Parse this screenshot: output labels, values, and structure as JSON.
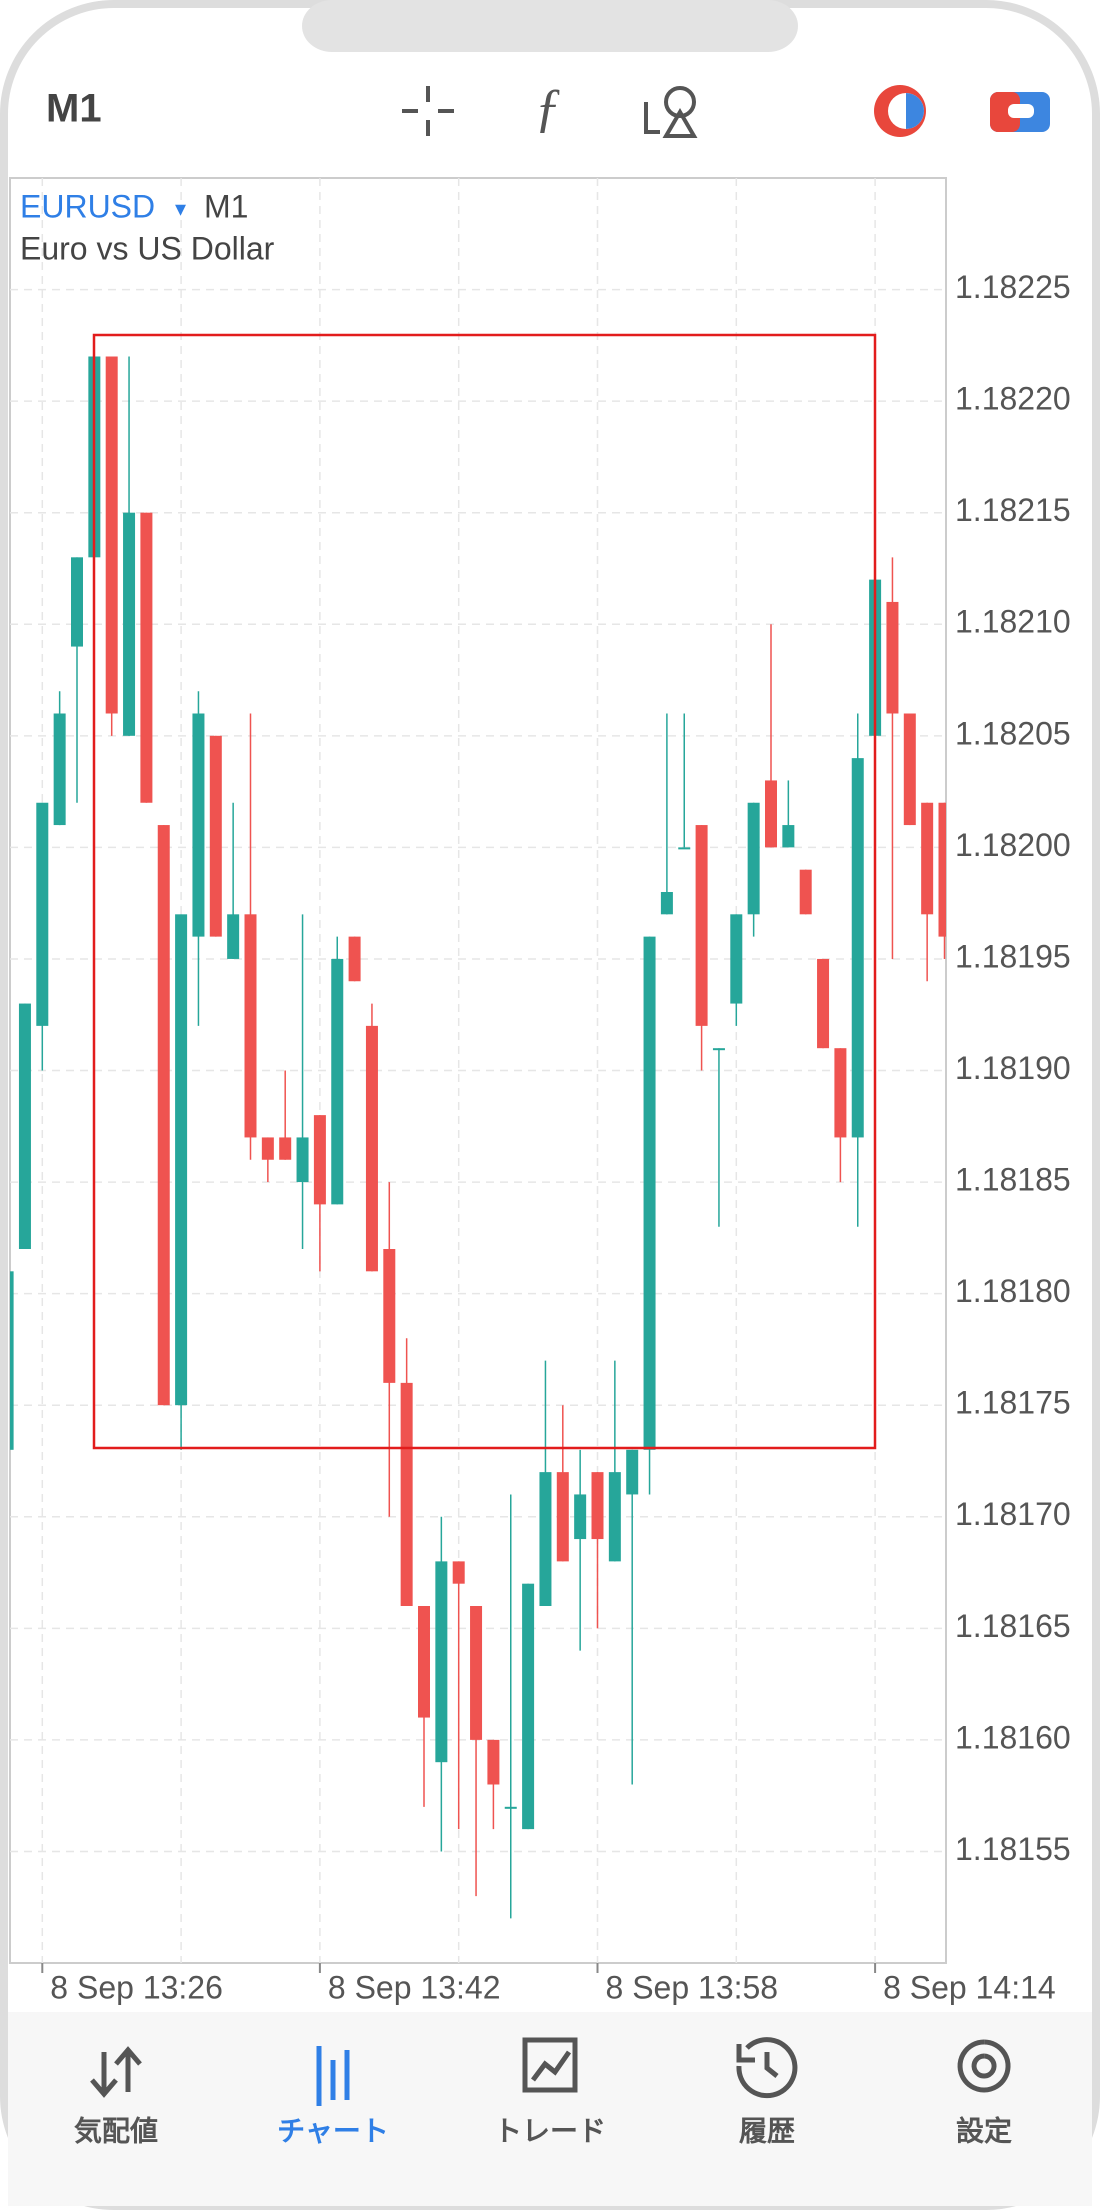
{
  "ui": {
    "timeframe": "M1",
    "tabs": [
      "気配値",
      "チャート",
      "トレード",
      "履歴",
      "設定"
    ]
  },
  "chart_data": {
    "type": "candlestick",
    "symbol": "EURUSD",
    "timeframe": "M1",
    "subtitle": "Euro vs US Dollar",
    "categories": [
      null,
      null,
      "8 Sep 13:26",
      null,
      null,
      null,
      null,
      null,
      null,
      null,
      null,
      null,
      null,
      null,
      null,
      null,
      null,
      null,
      "8 Sep 13:42",
      null,
      null,
      null,
      null,
      null,
      null,
      null,
      null,
      null,
      null,
      null,
      null,
      null,
      null,
      null,
      "8 Sep 13:58",
      null,
      null,
      null,
      null,
      null,
      null,
      null,
      null,
      null,
      null,
      null,
      null,
      null,
      null,
      null,
      "8 Sep 14:14",
      null,
      null,
      null,
      null
    ],
    "open": [
      1.18173,
      1.18182,
      1.18192,
      1.18201,
      1.18209,
      1.18213,
      1.18222,
      1.18205,
      1.18215,
      1.18201,
      1.18175,
      1.18196,
      1.18205,
      1.18195,
      1.18197,
      1.18187,
      1.18187,
      1.18185,
      1.18188,
      1.18184,
      1.18196,
      1.18192,
      1.18182,
      1.18176,
      1.18166,
      1.18159,
      1.18168,
      1.18166,
      1.1816,
      1.18157,
      1.18156,
      1.18166,
      1.18172,
      1.18169,
      1.18172,
      1.18168,
      1.18171,
      1.18173,
      1.18197,
      1.182,
      1.18201,
      1.18191,
      1.18193,
      1.18197,
      1.18203,
      1.182,
      1.18199,
      1.18195,
      1.18191,
      1.18187,
      1.18205,
      1.18211,
      1.18206,
      1.18202,
      1.18202
    ],
    "high": [
      1.18181,
      1.18193,
      1.18202,
      1.18207,
      1.18213,
      1.18222,
      1.18222,
      1.18222,
      1.18215,
      1.18201,
      1.18197,
      1.18207,
      1.18205,
      1.18202,
      1.18206,
      1.18187,
      1.1819,
      1.18197,
      1.18188,
      1.18196,
      1.18196,
      1.18193,
      1.18185,
      1.18178,
      1.18166,
      1.1817,
      1.18168,
      1.18166,
      1.1816,
      1.18171,
      1.18167,
      1.18177,
      1.18175,
      1.18173,
      1.18172,
      1.18177,
      1.18173,
      1.18196,
      1.18206,
      1.18206,
      1.18201,
      1.18191,
      1.18197,
      1.18202,
      1.1821,
      1.18203,
      1.18199,
      1.18195,
      1.18191,
      1.18206,
      1.18212,
      1.18213,
      1.18206,
      1.18202,
      1.18202
    ],
    "low": [
      1.18173,
      1.18182,
      1.1819,
      1.18201,
      1.18202,
      1.18213,
      1.18205,
      1.18205,
      1.18202,
      1.18175,
      1.18173,
      1.18192,
      1.18196,
      1.18195,
      1.18186,
      1.18185,
      1.18186,
      1.18182,
      1.18181,
      1.18184,
      1.18194,
      1.18181,
      1.1817,
      1.18166,
      1.18157,
      1.18155,
      1.18156,
      1.18153,
      1.18156,
      1.18152,
      1.18156,
      1.18166,
      1.18168,
      1.18164,
      1.18165,
      1.18168,
      1.18158,
      1.18171,
      1.18197,
      1.182,
      1.1819,
      1.18183,
      1.18192,
      1.18196,
      1.182,
      1.182,
      1.18197,
      1.18191,
      1.18185,
      1.18183,
      1.18205,
      1.18195,
      1.18201,
      1.18194,
      1.18195
    ],
    "close": [
      1.18181,
      1.18193,
      1.18202,
      1.18206,
      1.18213,
      1.18222,
      1.18206,
      1.18215,
      1.18202,
      1.18175,
      1.18197,
      1.18206,
      1.18196,
      1.18197,
      1.18187,
      1.18186,
      1.18186,
      1.18187,
      1.18184,
      1.18195,
      1.18194,
      1.18181,
      1.18176,
      1.18166,
      1.18161,
      1.18168,
      1.18167,
      1.1816,
      1.18158,
      1.18157,
      1.18167,
      1.18172,
      1.18168,
      1.18171,
      1.18169,
      1.18172,
      1.18173,
      1.18196,
      1.18198,
      1.182,
      1.18192,
      1.18191,
      1.18197,
      1.18202,
      1.182,
      1.18201,
      1.18197,
      1.18191,
      1.18187,
      1.18204,
      1.18212,
      1.18206,
      1.18201,
      1.18197,
      1.18196
    ],
    "up_color": "#26a69a",
    "down_color": "#ef5350",
    "ylim": [
      1.1815,
      1.1823
    ],
    "yticks": [
      1.18225,
      {
        "value": 1.1822,
        "label": "1.18220"
      },
      1.18215,
      {
        "value": 1.1821,
        "label": "1.18210"
      },
      1.18205,
      {
        "value": 1.182,
        "label": "1.18200"
      },
      1.18195,
      {
        "value": 1.1819,
        "label": "1.18190"
      },
      1.18185,
      {
        "value": 1.1818,
        "label": "1.18180"
      },
      1.18175,
      {
        "value": 1.1817,
        "label": "1.18170"
      },
      1.18165,
      {
        "value": 1.1816,
        "label": "1.18160"
      },
      1.18155
    ],
    "grid": true
  }
}
